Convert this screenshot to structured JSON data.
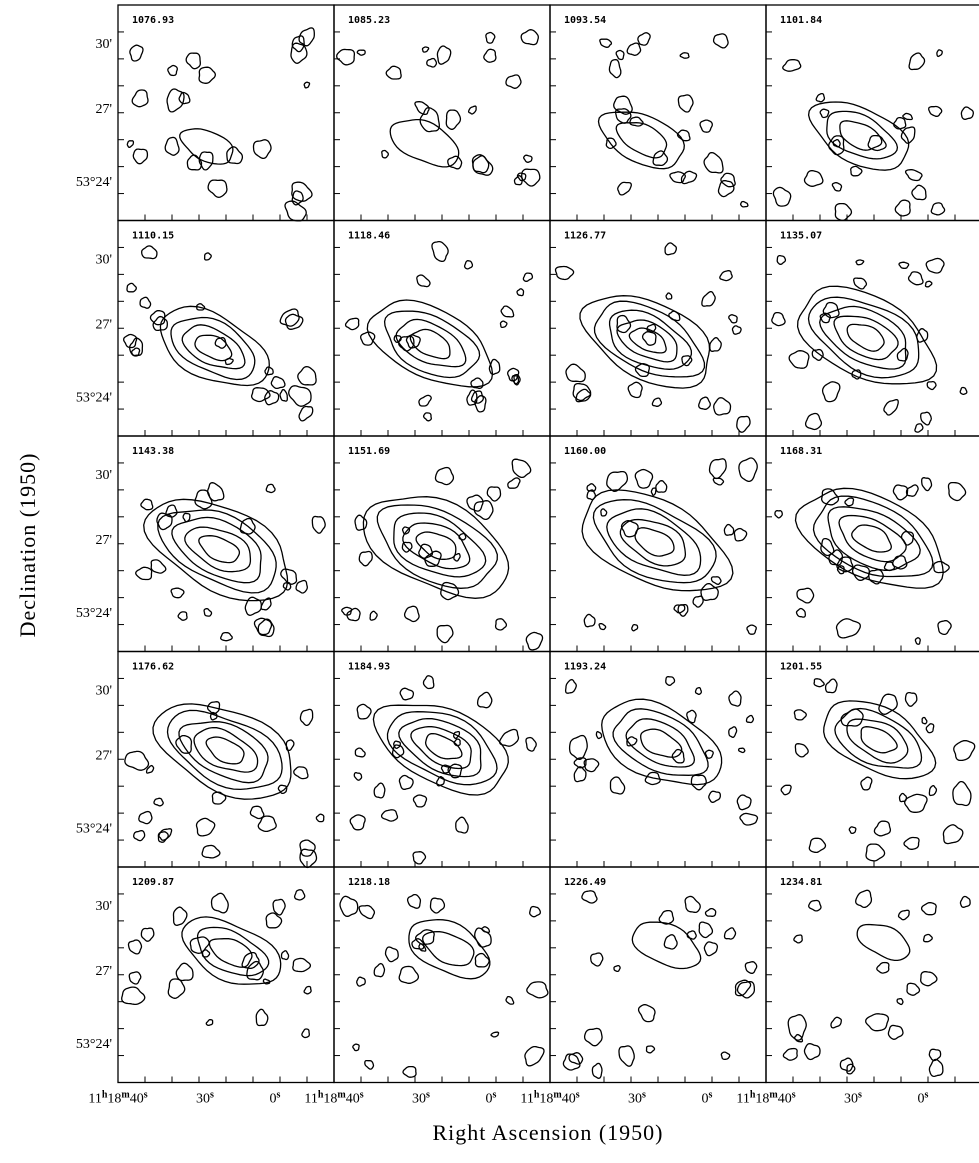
{
  "figure": {
    "y_label": "Declination (1950)",
    "x_label": "Right Ascension (1950)",
    "y_tick_labels": [
      "30'",
      "27'",
      "53°24'"
    ],
    "x_tick_labels": [
      [
        "11",
        "h",
        "18",
        "m",
        "40",
        "s"
      ],
      [
        "30",
        "s"
      ],
      [
        "0",
        "s"
      ]
    ],
    "panels": [
      "1076.93",
      "1085.23",
      "1093.54",
      "1101.84",
      "1110.15",
      "1118.46",
      "1126.77",
      "1135.07",
      "1143.38",
      "1151.69",
      "1160.00",
      "1168.31",
      "1176.62",
      "1184.93",
      "1193.24",
      "1201.55",
      "1209.87",
      "1218.18",
      "1226.49",
      "1234.81"
    ]
  }
}
